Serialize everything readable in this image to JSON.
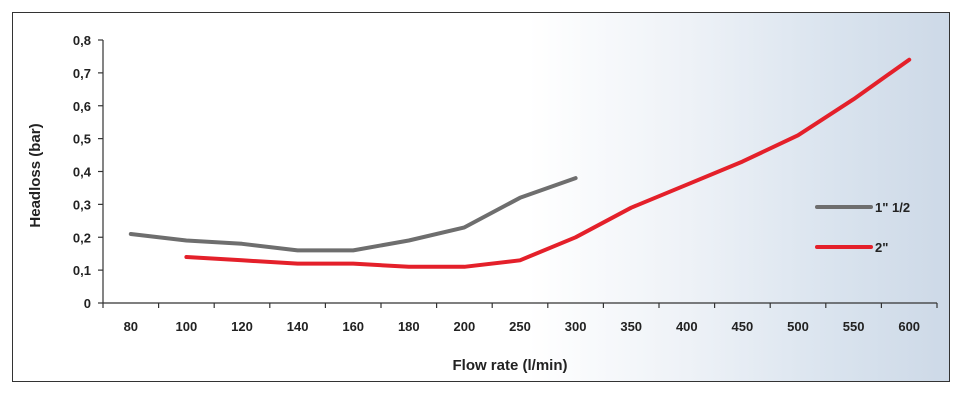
{
  "chart_data": {
    "type": "line",
    "title": "",
    "xlabel": "Flow rate (l/min)",
    "ylabel": "Headloss (bar)",
    "categories": [
      "80",
      "100",
      "120",
      "140",
      "160",
      "180",
      "200",
      "250",
      "300",
      "350",
      "400",
      "450",
      "500",
      "550",
      "600"
    ],
    "yticks": [
      "0",
      "0,1",
      "0,2",
      "0,3",
      "0,4",
      "0,5",
      "0,6",
      "0,7",
      "0,8"
    ],
    "ylim": [
      0,
      0.8
    ],
    "grid": false,
    "legend_position": "right",
    "series": [
      {
        "name": "1\" 1/2",
        "color": "#6e6e6e",
        "values": [
          0.21,
          0.19,
          0.18,
          0.16,
          0.16,
          0.19,
          0.23,
          0.32,
          0.38,
          null,
          null,
          null,
          null,
          null,
          null
        ]
      },
      {
        "name": "2\"",
        "color": "#e4202a",
        "values": [
          null,
          0.14,
          0.13,
          0.12,
          0.12,
          0.11,
          0.11,
          0.13,
          0.2,
          0.29,
          0.36,
          0.43,
          0.51,
          0.62,
          0.74
        ]
      }
    ]
  }
}
